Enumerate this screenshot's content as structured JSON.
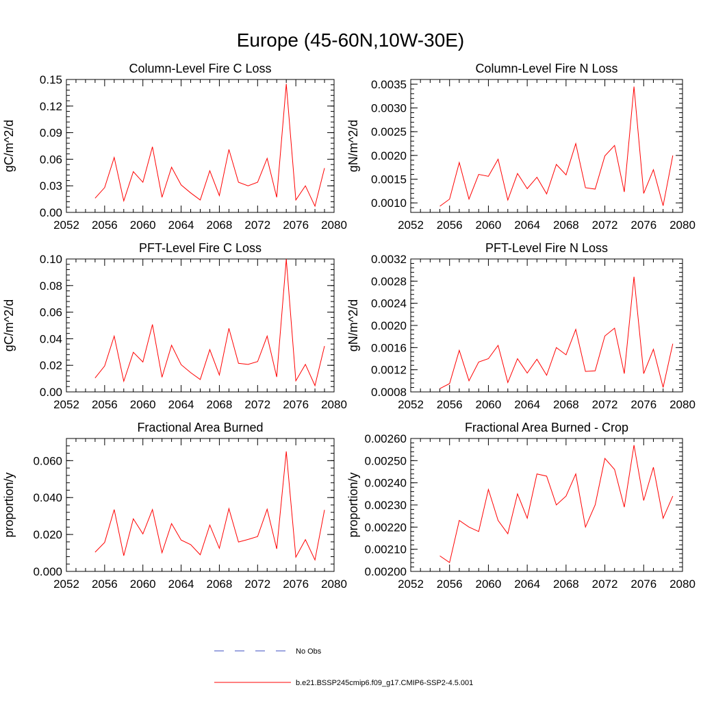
{
  "figure": {
    "title": "Europe (45-60N,10W-30E)"
  },
  "colors": {
    "series": "#ff0000",
    "obs": "#3b4cc0",
    "axis": "#000000"
  },
  "legend": {
    "position": "bottom-center",
    "entries": [
      {
        "label": "No Obs",
        "style": "dashed",
        "color": "#3b4cc0"
      },
      {
        "label": "b.e21.BSSP245cmip6.f09_g17.CMIP6-SSP2-4.5.001",
        "style": "solid",
        "color": "#ff0000"
      }
    ]
  },
  "chart_data": [
    {
      "type": "line",
      "title": "Column-Level Fire C Loss",
      "ylabel": "gC/m^2/d",
      "xlabel": "",
      "xlim": [
        2052,
        2080
      ],
      "ylim": [
        0,
        0.15
      ],
      "xticks": [
        2052,
        2056,
        2060,
        2064,
        2068,
        2072,
        2076,
        2080
      ],
      "xtick_labels": [
        "2052",
        "2056",
        "2060",
        "2064",
        "2068",
        "2072",
        "2076",
        "2080"
      ],
      "yticks": [
        0,
        0.03,
        0.06,
        0.09,
        0.12,
        0.15
      ],
      "ytick_labels": [
        "0.00",
        "0.03",
        "0.06",
        "0.09",
        "0.12",
        "0.15"
      ],
      "x": [
        2055,
        2056,
        2057,
        2058,
        2059,
        2060,
        2061,
        2062,
        2063,
        2064,
        2065,
        2066,
        2067,
        2068,
        2069,
        2070,
        2071,
        2072,
        2073,
        2074,
        2075,
        2076,
        2077,
        2078,
        2079
      ],
      "series": [
        {
          "values": [
            0.016,
            0.028,
            0.062,
            0.013,
            0.046,
            0.034,
            0.074,
            0.017,
            0.051,
            0.031,
            0.022,
            0.014,
            0.047,
            0.019,
            0.071,
            0.034,
            0.03,
            0.034,
            0.061,
            0.017,
            0.145,
            0.014,
            0.03,
            0.007,
            0.05
          ]
        }
      ]
    },
    {
      "type": "line",
      "title": "Column-Level Fire N Loss",
      "ylabel": "gN/m^2/d",
      "xlabel": "",
      "xlim": [
        2052,
        2080
      ],
      "ylim": [
        0.0008,
        0.0036
      ],
      "xticks": [
        2052,
        2056,
        2060,
        2064,
        2068,
        2072,
        2076,
        2080
      ],
      "xtick_labels": [
        "2052",
        "2056",
        "2060",
        "2064",
        "2068",
        "2072",
        "2076",
        "2080"
      ],
      "yticks": [
        0.001,
        0.0015,
        0.002,
        0.0025,
        0.003,
        0.0035
      ],
      "ytick_labels": [
        "0.0010",
        "0.0015",
        "0.0020",
        "0.0025",
        "0.0030",
        "0.0035"
      ],
      "x": [
        2055,
        2056,
        2057,
        2058,
        2059,
        2060,
        2061,
        2062,
        2063,
        2064,
        2065,
        2066,
        2067,
        2068,
        2069,
        2070,
        2071,
        2072,
        2073,
        2074,
        2075,
        2076,
        2077,
        2078,
        2079
      ],
      "series": [
        {
          "values": [
            0.00093,
            0.00108,
            0.00185,
            0.00108,
            0.0016,
            0.00156,
            0.00192,
            0.00106,
            0.00162,
            0.0013,
            0.00154,
            0.00119,
            0.00181,
            0.00159,
            0.00225,
            0.00132,
            0.00129,
            0.00199,
            0.00221,
            0.00123,
            0.00345,
            0.0012,
            0.0017,
            0.00094,
            0.002
          ]
        }
      ]
    },
    {
      "type": "line",
      "title": "PFT-Level Fire C Loss",
      "ylabel": "gC/m^2/d",
      "xlabel": "",
      "xlim": [
        2052,
        2080
      ],
      "ylim": [
        0,
        0.1
      ],
      "xticks": [
        2052,
        2056,
        2060,
        2064,
        2068,
        2072,
        2076,
        2080
      ],
      "xtick_labels": [
        "2052",
        "2056",
        "2060",
        "2064",
        "2068",
        "2072",
        "2076",
        "2080"
      ],
      "yticks": [
        0,
        0.02,
        0.04,
        0.06,
        0.08,
        0.1
      ],
      "ytick_labels": [
        "0.00",
        "0.02",
        "0.04",
        "0.06",
        "0.08",
        "0.10"
      ],
      "x": [
        2055,
        2056,
        2057,
        2058,
        2059,
        2060,
        2061,
        2062,
        2063,
        2064,
        2065,
        2066,
        2067,
        2068,
        2069,
        2070,
        2071,
        2072,
        2073,
        2074,
        2075,
        2076,
        2077,
        2078,
        2079
      ],
      "series": [
        {
          "values": [
            0.0105,
            0.0195,
            0.042,
            0.008,
            0.0298,
            0.0225,
            0.0507,
            0.011,
            0.0351,
            0.0205,
            0.0145,
            0.0093,
            0.0318,
            0.0127,
            0.0478,
            0.0215,
            0.0207,
            0.0228,
            0.042,
            0.0112,
            0.0999,
            0.0083,
            0.0207,
            0.0047,
            0.0345
          ]
        }
      ]
    },
    {
      "type": "line",
      "title": "PFT-Level Fire N Loss",
      "ylabel": "gN/m^2/d",
      "xlabel": "",
      "xlim": [
        2052,
        2080
      ],
      "ylim": [
        0.0008,
        0.0032
      ],
      "xticks": [
        2052,
        2056,
        2060,
        2064,
        2068,
        2072,
        2076,
        2080
      ],
      "xtick_labels": [
        "2052",
        "2056",
        "2060",
        "2064",
        "2068",
        "2072",
        "2076",
        "2080"
      ],
      "yticks": [
        0.0008,
        0.0012,
        0.0016,
        0.002,
        0.0024,
        0.0028,
        0.0032
      ],
      "ytick_labels": [
        "0.0008",
        "0.0012",
        "0.0016",
        "0.0020",
        "0.0024",
        "0.0028",
        "0.0032"
      ],
      "x": [
        2055,
        2056,
        2057,
        2058,
        2059,
        2060,
        2061,
        2062,
        2063,
        2064,
        2065,
        2066,
        2067,
        2068,
        2069,
        2070,
        2071,
        2072,
        2073,
        2074,
        2075,
        2076,
        2077,
        2078,
        2079
      ],
      "series": [
        {
          "values": [
            0.00086,
            0.00095,
            0.00155,
            0.001,
            0.00134,
            0.0014,
            0.00164,
            0.00097,
            0.0014,
            0.00114,
            0.00139,
            0.0011,
            0.0016,
            0.00147,
            0.00193,
            0.00117,
            0.00118,
            0.00181,
            0.00195,
            0.00113,
            0.00288,
            0.00113,
            0.00157,
            0.00088,
            0.00167
          ]
        }
      ]
    },
    {
      "type": "line",
      "title": "Fractional Area Burned",
      "ylabel": "proportion/y",
      "xlabel": "",
      "xlim": [
        2052,
        2080
      ],
      "ylim": [
        0,
        0.072
      ],
      "xticks": [
        2052,
        2056,
        2060,
        2064,
        2068,
        2072,
        2076,
        2080
      ],
      "xtick_labels": [
        "2052",
        "2056",
        "2060",
        "2064",
        "2068",
        "2072",
        "2076",
        "2080"
      ],
      "yticks": [
        0,
        0.02,
        0.04,
        0.06
      ],
      "ytick_labels": [
        "0.000",
        "0.020",
        "0.040",
        "0.060"
      ],
      "x": [
        2055,
        2056,
        2057,
        2058,
        2059,
        2060,
        2061,
        2062,
        2063,
        2064,
        2065,
        2066,
        2067,
        2068,
        2069,
        2070,
        2071,
        2072,
        2073,
        2074,
        2075,
        2076,
        2077,
        2078,
        2079
      ],
      "series": [
        {
          "values": [
            0.0104,
            0.0157,
            0.0335,
            0.0085,
            0.0285,
            0.0203,
            0.0335,
            0.0101,
            0.0259,
            0.017,
            0.0145,
            0.009,
            0.0251,
            0.0125,
            0.034,
            0.0159,
            0.0173,
            0.0189,
            0.0337,
            0.0122,
            0.065,
            0.0077,
            0.0172,
            0.0062,
            0.0333
          ]
        }
      ]
    },
    {
      "type": "line",
      "title": "Fractional Area Burned - Crop",
      "ylabel": "proportion/y",
      "xlabel": "",
      "xlim": [
        2052,
        2080
      ],
      "ylim": [
        0.002,
        0.0026
      ],
      "xticks": [
        2052,
        2056,
        2060,
        2064,
        2068,
        2072,
        2076,
        2080
      ],
      "xtick_labels": [
        "2052",
        "2056",
        "2060",
        "2064",
        "2068",
        "2072",
        "2076",
        "2080"
      ],
      "yticks": [
        0.002,
        0.0021,
        0.0022,
        0.0023,
        0.0024,
        0.0025,
        0.0026
      ],
      "ytick_labels": [
        "0.00200",
        "0.00210",
        "0.00220",
        "0.00230",
        "0.00240",
        "0.00250",
        "0.00260"
      ],
      "x": [
        2055,
        2056,
        2057,
        2058,
        2059,
        2060,
        2061,
        2062,
        2063,
        2064,
        2065,
        2066,
        2067,
        2068,
        2069,
        2070,
        2071,
        2072,
        2073,
        2074,
        2075,
        2076,
        2077,
        2078,
        2079
      ],
      "series": [
        {
          "values": [
            0.00207,
            0.00204,
            0.00223,
            0.0022,
            0.00218,
            0.00237,
            0.00223,
            0.00217,
            0.00235,
            0.00224,
            0.00244,
            0.00243,
            0.0023,
            0.00234,
            0.00244,
            0.0022,
            0.0023,
            0.00251,
            0.00246,
            0.00229,
            0.00257,
            0.00232,
            0.00247,
            0.00224,
            0.00234
          ]
        }
      ]
    }
  ]
}
